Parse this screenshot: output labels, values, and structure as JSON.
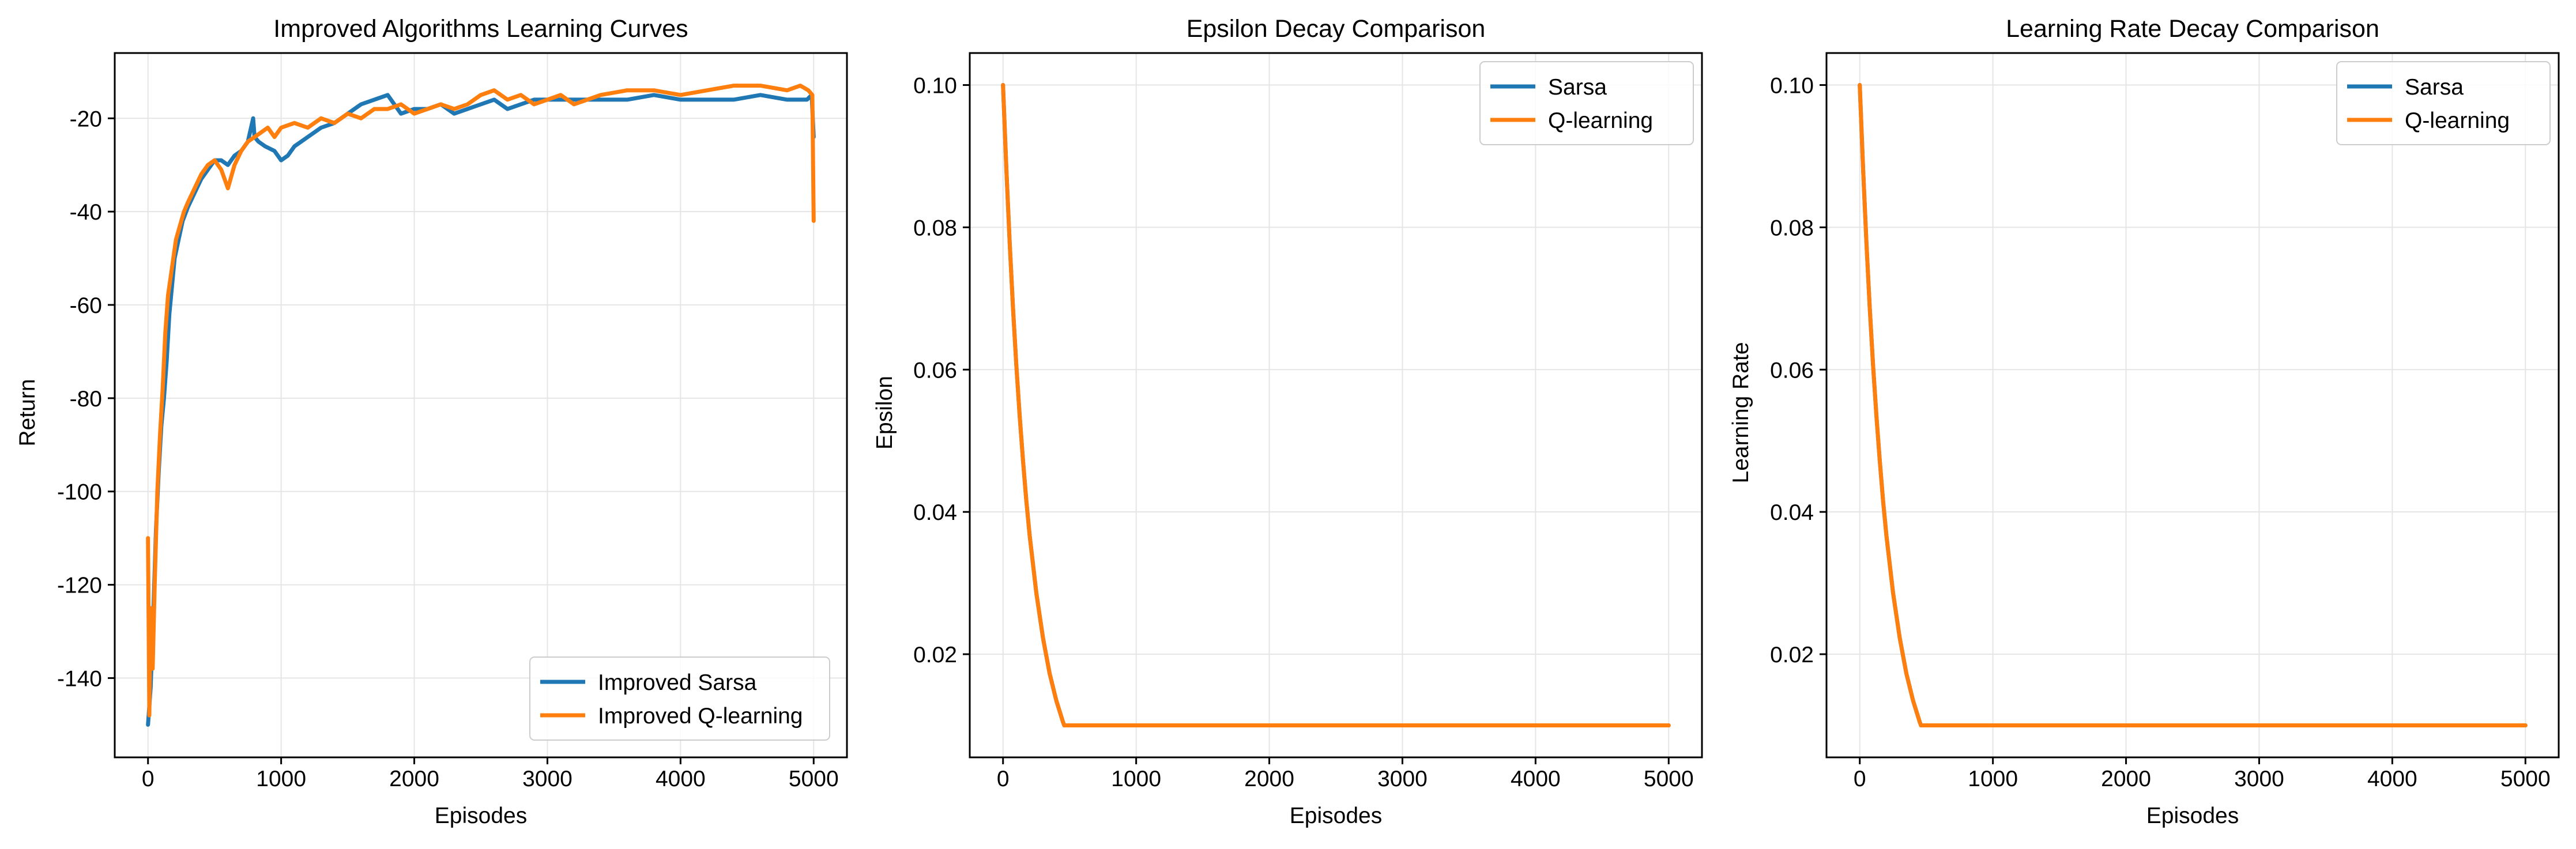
{
  "colors": {
    "sarsa": "#1f77b4",
    "qlearning": "#ff7f0e",
    "grid": "#e5e5e5",
    "axes": "#000000"
  },
  "chart_data": [
    {
      "type": "line",
      "title": "Improved Algorithms Learning Curves",
      "xlabel": "Episodes",
      "ylabel": "Return",
      "xlim": [
        -250,
        5250
      ],
      "ylim": [
        -157,
        -6
      ],
      "xticks": [
        0,
        1000,
        2000,
        3000,
        4000,
        5000
      ],
      "yticks": [
        -140,
        -120,
        -100,
        -80,
        -60,
        -40,
        -20
      ],
      "xtick_labels": [
        "0",
        "1000",
        "2000",
        "3000",
        "4000",
        "5000"
      ],
      "ytick_labels": [
        "-140",
        "-120",
        "-100",
        "-80",
        "-60",
        "-40",
        "-20"
      ],
      "grid": true,
      "legend_position": "lower-right",
      "series": [
        {
          "name": "Improved Sarsa",
          "color": "#1f77b4",
          "x": [
            0,
            20,
            40,
            60,
            80,
            100,
            120,
            140,
            160,
            180,
            200,
            230,
            260,
            300,
            350,
            400,
            450,
            500,
            550,
            600,
            650,
            700,
            750,
            790,
            800,
            830,
            880,
            950,
            1000,
            1050,
            1100,
            1150,
            1200,
            1300,
            1400,
            1500,
            1600,
            1700,
            1800,
            1850,
            1900,
            2000,
            2100,
            2200,
            2300,
            2400,
            2500,
            2600,
            2700,
            2800,
            2900,
            3000,
            3200,
            3400,
            3600,
            3800,
            4000,
            4200,
            4400,
            4600,
            4800,
            4950,
            4985,
            5000
          ],
          "y": [
            -150,
            -142,
            -126,
            -108,
            -96,
            -86,
            -80,
            -72,
            -62,
            -56,
            -50,
            -46,
            -42,
            -39,
            -36,
            -33,
            -31,
            -29,
            -29,
            -30,
            -28,
            -27,
            -25,
            -20,
            -24,
            -25,
            -26,
            -27,
            -29,
            -28,
            -26,
            -25,
            -24,
            -22,
            -21,
            -19,
            -17,
            -16,
            -15,
            -17,
            -19,
            -18,
            -18,
            -17,
            -19,
            -18,
            -17,
            -16,
            -18,
            -17,
            -16,
            -16,
            -16,
            -16,
            -16,
            -15,
            -16,
            -16,
            -16,
            -15,
            -16,
            -16,
            -15,
            -24
          ]
        },
        {
          "name": "Improved Q-learning",
          "color": "#ff7f0e",
          "x": [
            0,
            10,
            20,
            35,
            50,
            70,
            90,
            110,
            130,
            150,
            170,
            190,
            210,
            240,
            270,
            300,
            350,
            400,
            450,
            500,
            550,
            600,
            650,
            700,
            750,
            800,
            850,
            900,
            950,
            1000,
            1100,
            1200,
            1300,
            1400,
            1500,
            1600,
            1700,
            1800,
            1900,
            2000,
            2100,
            2200,
            2300,
            2400,
            2500,
            2600,
            2700,
            2800,
            2900,
            3000,
            3100,
            3200,
            3400,
            3600,
            3800,
            4000,
            4200,
            4400,
            4600,
            4800,
            4900,
            4960,
            4990,
            5000
          ],
          "y": [
            -110,
            -148,
            -125,
            -138,
            -120,
            -100,
            -88,
            -78,
            -66,
            -58,
            -54,
            -50,
            -46,
            -43,
            -40,
            -38,
            -35,
            -32,
            -30,
            -29,
            -31,
            -35,
            -30,
            -27,
            -25,
            -24,
            -23,
            -22,
            -24,
            -22,
            -21,
            -22,
            -20,
            -21,
            -19,
            -20,
            -18,
            -18,
            -17,
            -19,
            -18,
            -17,
            -18,
            -17,
            -15,
            -14,
            -16,
            -15,
            -17,
            -16,
            -15,
            -17,
            -15,
            -14,
            -14,
            -15,
            -14,
            -13,
            -13,
            -14,
            -13,
            -14,
            -15,
            -42
          ]
        }
      ]
    },
    {
      "type": "line",
      "title": "Epsilon Decay Comparison",
      "xlabel": "Episodes",
      "ylabel": "Epsilon",
      "xlim": [
        -250,
        5250
      ],
      "ylim": [
        0.0055,
        0.1045
      ],
      "xticks": [
        0,
        1000,
        2000,
        3000,
        4000,
        5000
      ],
      "yticks": [
        0.02,
        0.04,
        0.06,
        0.08,
        0.1
      ],
      "xtick_labels": [
        "0",
        "1000",
        "2000",
        "3000",
        "4000",
        "5000"
      ],
      "ytick_labels": [
        "0.02",
        "0.04",
        "0.06",
        "0.08",
        "0.10"
      ],
      "grid": true,
      "legend_position": "upper-right",
      "series": [
        {
          "name": "Sarsa",
          "color": "#1f77b4",
          "x": [
            0,
            25,
            50,
            75,
            100,
            125,
            150,
            175,
            200,
            250,
            300,
            350,
            400,
            450,
            460,
            1000,
            2000,
            3000,
            4000,
            5000
          ],
          "y": [
            0.1,
            0.0882,
            0.0778,
            0.0687,
            0.0606,
            0.0535,
            0.0472,
            0.0416,
            0.0367,
            0.0286,
            0.0223,
            0.0173,
            0.0135,
            0.0105,
            0.01,
            0.01,
            0.01,
            0.01,
            0.01,
            0.01
          ]
        },
        {
          "name": "Q-learning",
          "color": "#ff7f0e",
          "x": [
            0,
            25,
            50,
            75,
            100,
            125,
            150,
            175,
            200,
            250,
            300,
            350,
            400,
            450,
            460,
            1000,
            2000,
            3000,
            4000,
            5000
          ],
          "y": [
            0.1,
            0.0882,
            0.0778,
            0.0687,
            0.0606,
            0.0535,
            0.0472,
            0.0416,
            0.0367,
            0.0286,
            0.0223,
            0.0173,
            0.0135,
            0.0105,
            0.01,
            0.01,
            0.01,
            0.01,
            0.01,
            0.01
          ]
        }
      ]
    },
    {
      "type": "line",
      "title": "Learning Rate Decay Comparison",
      "xlabel": "Episodes",
      "ylabel": "Learning Rate",
      "xlim": [
        -250,
        5250
      ],
      "ylim": [
        0.0055,
        0.1045
      ],
      "xticks": [
        0,
        1000,
        2000,
        3000,
        4000,
        5000
      ],
      "yticks": [
        0.02,
        0.04,
        0.06,
        0.08,
        0.1
      ],
      "xtick_labels": [
        "0",
        "1000",
        "2000",
        "3000",
        "4000",
        "5000"
      ],
      "ytick_labels": [
        "0.02",
        "0.04",
        "0.06",
        "0.08",
        "0.10"
      ],
      "grid": true,
      "legend_position": "upper-right",
      "series": [
        {
          "name": "Sarsa",
          "color": "#1f77b4",
          "x": [
            0,
            25,
            50,
            75,
            100,
            125,
            150,
            175,
            200,
            250,
            300,
            350,
            400,
            450,
            460,
            1000,
            2000,
            3000,
            4000,
            5000
          ],
          "y": [
            0.1,
            0.0882,
            0.0778,
            0.0687,
            0.0606,
            0.0535,
            0.0472,
            0.0416,
            0.0367,
            0.0286,
            0.0223,
            0.0173,
            0.0135,
            0.0105,
            0.01,
            0.01,
            0.01,
            0.01,
            0.01,
            0.01
          ]
        },
        {
          "name": "Q-learning",
          "color": "#ff7f0e",
          "x": [
            0,
            25,
            50,
            75,
            100,
            125,
            150,
            175,
            200,
            250,
            300,
            350,
            400,
            450,
            460,
            1000,
            2000,
            3000,
            4000,
            5000
          ],
          "y": [
            0.1,
            0.0882,
            0.0778,
            0.0687,
            0.0606,
            0.0535,
            0.0472,
            0.0416,
            0.0367,
            0.0286,
            0.0223,
            0.0173,
            0.0135,
            0.0105,
            0.01,
            0.01,
            0.01,
            0.01,
            0.01,
            0.01
          ]
        }
      ]
    }
  ]
}
